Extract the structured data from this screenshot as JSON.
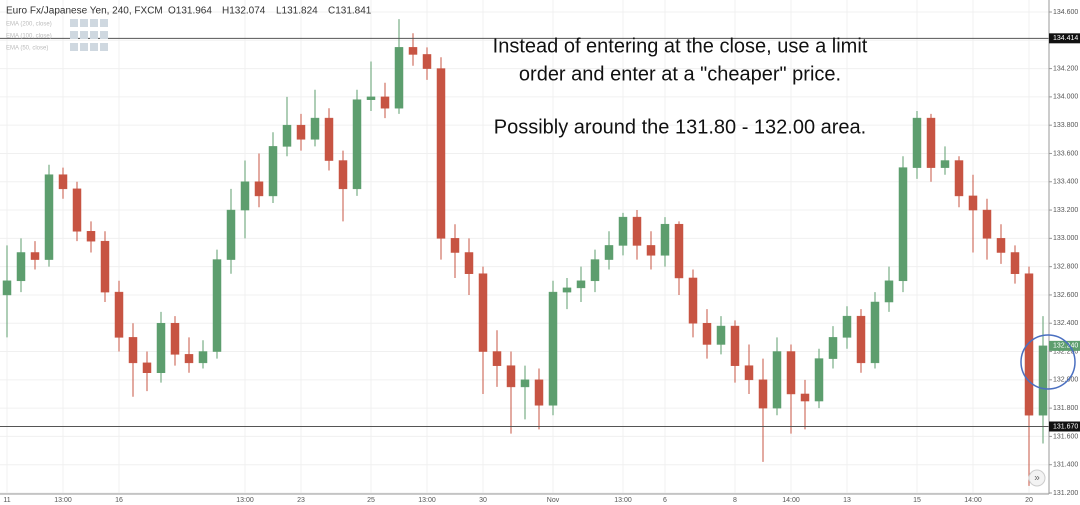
{
  "chart_data": {
    "type": "candlestick",
    "symbol": "Euro Fx/Japanese Yen, 240, FXCM",
    "ohlc_readout": [
      "O131.964",
      "H132.074",
      "L131.824",
      "C131.841"
    ],
    "indicators": [
      "EMA (200, close)",
      "EMA (100, close)",
      "EMA (50, close)"
    ],
    "annotations": [
      "Instead of entering at the close, use a limit",
      "order and enter at a \"cheaper\" price.",
      "Possibly around the 131.80 - 132.00 area."
    ],
    "scroll_button": "»",
    "categories": [
      "11",
      null,
      null,
      null,
      "13:00",
      null,
      null,
      null,
      "16",
      null,
      null,
      null,
      null,
      null,
      null,
      null,
      null,
      "13:00",
      null,
      null,
      null,
      "23",
      null,
      null,
      null,
      null,
      "25",
      null,
      null,
      null,
      "13:00",
      null,
      null,
      null,
      "30",
      null,
      null,
      null,
      null,
      "Nov",
      null,
      null,
      null,
      null,
      "13:00",
      null,
      null,
      "6",
      null,
      null,
      null,
      null,
      "8",
      null,
      null,
      null,
      "14:00",
      null,
      null,
      null,
      "13",
      null,
      null,
      null,
      null,
      "15",
      null,
      null,
      null,
      "14:00",
      null,
      null,
      null,
      "20",
      null
    ],
    "open": [
      132.6,
      132.7,
      132.9,
      132.85,
      133.45,
      133.35,
      133.05,
      132.98,
      132.62,
      132.3,
      132.12,
      132.05,
      132.4,
      132.18,
      132.12,
      132.2,
      132.85,
      133.2,
      133.4,
      133.3,
      133.65,
      133.8,
      133.7,
      133.85,
      133.55,
      133.35,
      133.98,
      134.0,
      133.92,
      134.35,
      134.3,
      134.2,
      133.0,
      132.9,
      132.75,
      132.2,
      132.1,
      131.95,
      132.0,
      131.82,
      132.62,
      132.65,
      132.7,
      132.85,
      132.95,
      133.15,
      132.95,
      132.88,
      133.1,
      132.72,
      132.4,
      132.25,
      132.38,
      132.1,
      132.0,
      131.8,
      132.2,
      131.9,
      131.85,
      132.15,
      132.3,
      132.45,
      132.12,
      132.55,
      132.7,
      133.5,
      133.85,
      133.5,
      133.55,
      133.3,
      133.2,
      133.0,
      132.9,
      132.75,
      131.75
    ],
    "high": [
      132.95,
      133.0,
      132.98,
      133.52,
      133.5,
      133.4,
      133.12,
      133.05,
      132.7,
      132.4,
      132.2,
      132.48,
      132.45,
      132.3,
      132.28,
      132.92,
      133.35,
      133.55,
      133.6,
      133.75,
      134.0,
      133.88,
      134.05,
      133.92,
      133.62,
      134.05,
      134.25,
      134.1,
      134.55,
      134.45,
      134.35,
      134.28,
      133.1,
      133.0,
      132.8,
      132.35,
      132.2,
      132.1,
      132.08,
      132.7,
      132.72,
      132.8,
      132.92,
      133.05,
      133.18,
      133.2,
      133.05,
      133.15,
      133.12,
      132.78,
      132.5,
      132.45,
      132.42,
      132.25,
      132.15,
      132.3,
      132.25,
      132.0,
      132.22,
      132.38,
      132.52,
      132.5,
      132.62,
      132.8,
      133.58,
      133.9,
      133.88,
      133.65,
      133.58,
      133.45,
      133.28,
      133.1,
      132.95,
      132.8,
      132.45
    ],
    "low": [
      132.3,
      132.62,
      132.78,
      132.8,
      133.28,
      132.98,
      132.9,
      132.55,
      132.2,
      131.88,
      131.92,
      131.98,
      132.1,
      132.05,
      132.08,
      132.15,
      132.75,
      133.0,
      133.22,
      133.25,
      133.58,
      133.62,
      133.65,
      133.48,
      133.12,
      133.3,
      133.9,
      133.85,
      133.88,
      134.22,
      134.12,
      132.85,
      132.72,
      132.6,
      131.9,
      131.95,
      131.62,
      131.72,
      131.65,
      131.75,
      132.5,
      132.55,
      132.62,
      132.78,
      132.88,
      132.85,
      132.78,
      132.8,
      132.6,
      132.3,
      132.15,
      132.18,
      131.98,
      131.9,
      131.42,
      131.75,
      131.62,
      131.65,
      131.8,
      132.08,
      132.22,
      132.05,
      132.08,
      132.48,
      132.62,
      133.42,
      133.4,
      133.45,
      133.22,
      132.9,
      132.85,
      132.82,
      132.68,
      131.25,
      131.55
    ],
    "close": [
      132.7,
      132.9,
      132.85,
      133.45,
      133.35,
      133.05,
      132.98,
      132.62,
      132.3,
      132.12,
      132.05,
      132.4,
      132.18,
      132.12,
      132.2,
      132.85,
      133.2,
      133.4,
      133.3,
      133.65,
      133.8,
      133.7,
      133.85,
      133.55,
      133.35,
      133.98,
      134.0,
      133.92,
      134.35,
      134.3,
      134.2,
      133.0,
      132.9,
      132.75,
      132.2,
      132.1,
      131.95,
      132.0,
      131.82,
      132.62,
      132.65,
      132.7,
      132.85,
      132.95,
      133.15,
      132.95,
      132.88,
      133.1,
      132.72,
      132.4,
      132.25,
      132.38,
      132.1,
      132.0,
      131.8,
      132.2,
      131.9,
      131.85,
      132.15,
      132.3,
      132.45,
      132.12,
      132.55,
      132.7,
      133.5,
      133.85,
      133.5,
      133.55,
      133.3,
      133.2,
      133.0,
      132.9,
      132.75,
      131.75,
      132.24
    ],
    "up_color": "#5d9e6e",
    "down_color": "#c75443",
    "ylim": [
      131.2,
      134.6
    ],
    "yticks": [
      {
        "value": 131.2,
        "label": "131.200"
      },
      {
        "value": 131.4,
        "label": "131.400"
      },
      {
        "value": 131.6,
        "label": "131.600"
      },
      {
        "value": 131.8,
        "label": "131.800"
      },
      {
        "value": 132.0,
        "label": "132.000"
      },
      {
        "value": 132.2,
        "label": "132.200"
      },
      {
        "value": 132.4,
        "label": "132.400"
      },
      {
        "value": 132.6,
        "label": "132.600"
      },
      {
        "value": 132.8,
        "label": "132.800"
      },
      {
        "value": 133.0,
        "label": "133.000"
      },
      {
        "value": 133.2,
        "label": "133.200"
      },
      {
        "value": 133.4,
        "label": "133.400"
      },
      {
        "value": 133.6,
        "label": "133.600"
      },
      {
        "value": 133.8,
        "label": "133.800"
      },
      {
        "value": 134.0,
        "label": "134.000"
      },
      {
        "value": 134.2,
        "label": "134.200"
      },
      {
        "value": 134.4,
        "label": "134.400"
      },
      {
        "value": 134.6,
        "label": "134.600"
      }
    ],
    "hlines": [
      {
        "value": 134.414,
        "label": "134.414"
      },
      {
        "value": 131.67,
        "label": "131.670"
      }
    ],
    "last_price": {
      "value": 132.24,
      "label": "132.240"
    },
    "grid": true
  }
}
